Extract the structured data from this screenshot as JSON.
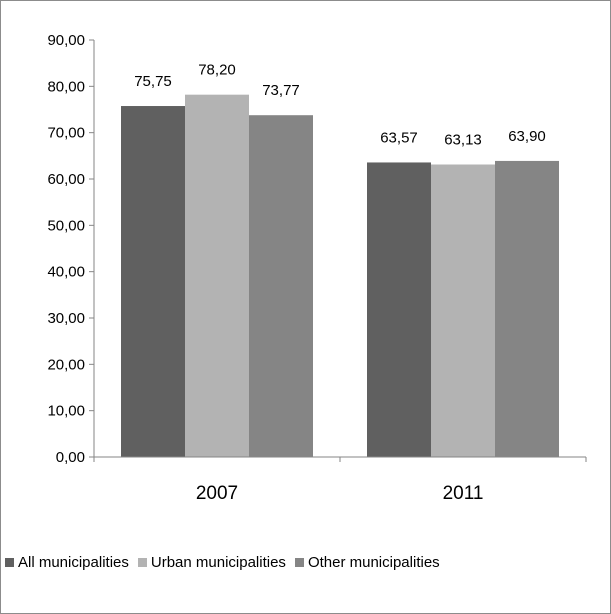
{
  "chart_data": {
    "type": "bar",
    "categories": [
      "2007",
      "2011"
    ],
    "series": [
      {
        "name": "All municipalities",
        "values": [
          75.75,
          63.57
        ],
        "labels": [
          "75,75",
          "63,57"
        ],
        "color": "#606060"
      },
      {
        "name": "Urban municipalities",
        "values": [
          78.2,
          63.13
        ],
        "labels": [
          "78,20",
          "63,13"
        ],
        "color": "#b3b3b3"
      },
      {
        "name": "Other municipalities",
        "values": [
          73.77,
          63.9
        ],
        "labels": [
          "73,77",
          "63,90"
        ],
        "color": "#858585"
      }
    ],
    "ylim": [
      0,
      90
    ],
    "yticks": [
      "0,00",
      "10,00",
      "20,00",
      "30,00",
      "40,00",
      "50,00",
      "60,00",
      "70,00",
      "80,00",
      "90,00"
    ],
    "title": "",
    "xlabel": "",
    "ylabel": "",
    "legend_position": "bottom",
    "grid": false
  }
}
